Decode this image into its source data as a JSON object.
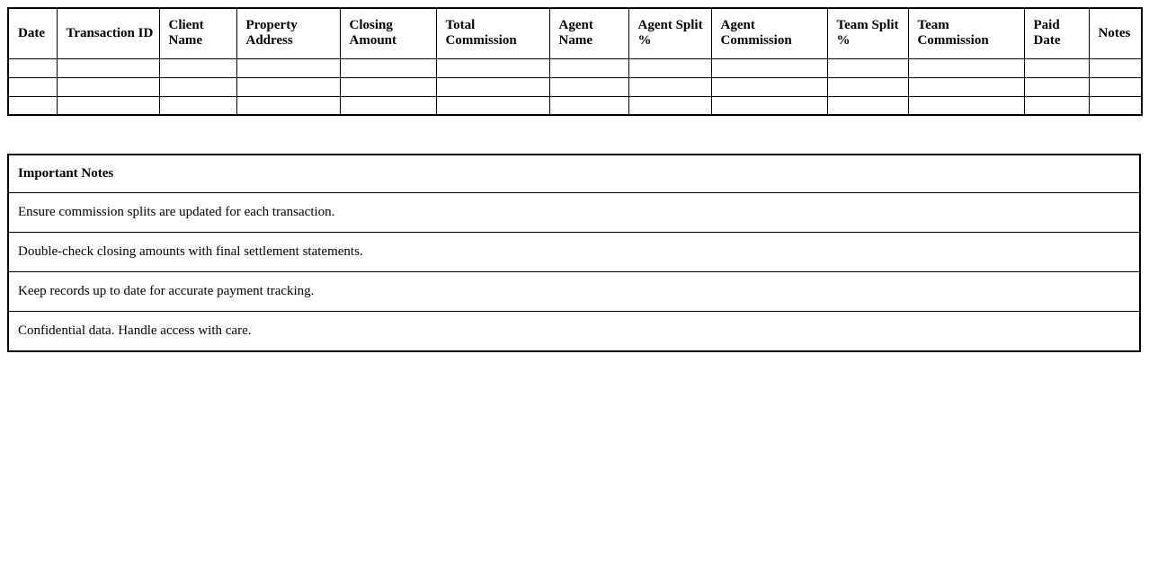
{
  "commission_table": {
    "columns": [
      {
        "label": "Date"
      },
      {
        "label": "Transaction ID"
      },
      {
        "label": "Client Name"
      },
      {
        "label": "Property Address"
      },
      {
        "label": "Closing Amount"
      },
      {
        "label": "Total Commission"
      },
      {
        "label": "Agent Name"
      },
      {
        "label": "Agent Split %"
      },
      {
        "label": "Agent Commission"
      },
      {
        "label": "Team Split %"
      },
      {
        "label": "Team Commission"
      },
      {
        "label": "Paid Date"
      },
      {
        "label": "Notes"
      }
    ],
    "empty_row_count": 3
  },
  "notes": {
    "title": "Important Notes",
    "items": [
      "Ensure commission splits are updated for each transaction.",
      "Double-check closing amounts with final settlement statements.",
      "Keep records up to date for accurate payment tracking.",
      "Confidential data. Handle access with care."
    ]
  },
  "colors": {
    "page_background": "#ffffff",
    "border": "#000000",
    "text": "#000000"
  }
}
